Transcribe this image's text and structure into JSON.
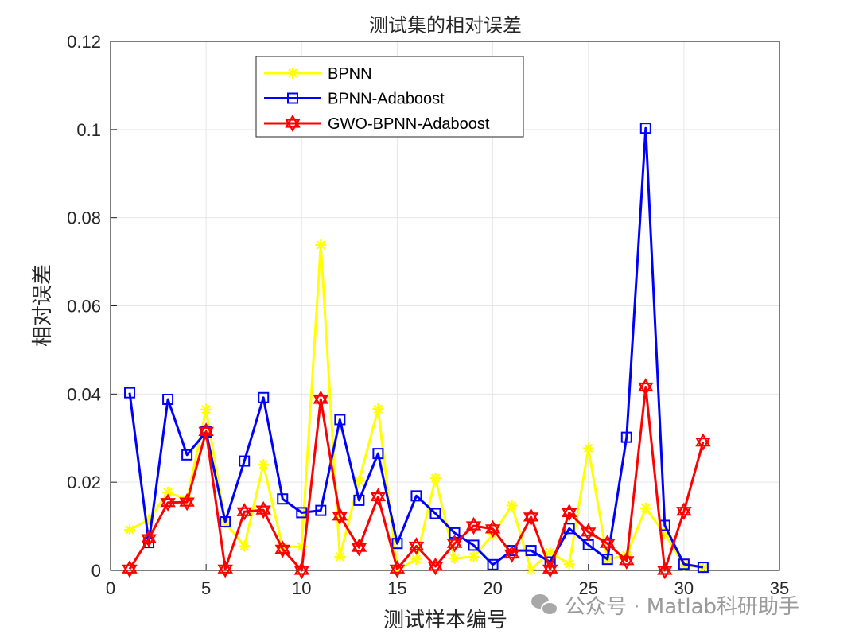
{
  "chart_data": {
    "type": "line",
    "title": "测试集的相对误差",
    "xlabel": "测试样本编号",
    "ylabel": "相对误差",
    "xlim": [
      0,
      35
    ],
    "ylim": [
      0,
      0.12
    ],
    "xticks": [
      0,
      5,
      10,
      15,
      20,
      25,
      30,
      35
    ],
    "xtick_labels": [
      "0",
      "5",
      "10",
      "15",
      "20",
      "25",
      "30",
      "35"
    ],
    "yticks": [
      0,
      0.02,
      0.04,
      0.06,
      0.08,
      0.1,
      0.12
    ],
    "ytick_labels": [
      "0",
      "0.02",
      "0.04",
      "0.06",
      "0.08",
      "0.1",
      "0.12"
    ],
    "grid": true,
    "legend_position": "upper-left-inside",
    "x": [
      1,
      2,
      3,
      4,
      5,
      6,
      7,
      8,
      9,
      10,
      11,
      12,
      13,
      14,
      15,
      16,
      17,
      18,
      19,
      20,
      21,
      22,
      23,
      24,
      25,
      26,
      27,
      28,
      29,
      30,
      31
    ],
    "series": [
      {
        "name": "BPNN",
        "color": "#FFFF00",
        "marker": "asterisk",
        "values": [
          0.0092,
          0.0115,
          0.0177,
          0.016,
          0.0365,
          0.0108,
          0.0055,
          0.024,
          0.0053,
          0.0054,
          0.0738,
          0.0031,
          0.0203,
          0.0366,
          0.0001,
          0.0025,
          0.0209,
          0.0027,
          0.0031,
          0.0081,
          0.0147,
          0.0002,
          0.0041,
          0.0014,
          0.0277,
          0.0025,
          0.0034,
          0.0141,
          0.0083,
          0.0012,
          0.0006
        ]
      },
      {
        "name": "BPNN-Adaboost",
        "color": "#0000FF",
        "marker": "square",
        "values": [
          0.0403,
          0.0063,
          0.0388,
          0.0262,
          0.0314,
          0.011,
          0.0248,
          0.0392,
          0.0162,
          0.0131,
          0.0136,
          0.0342,
          0.0159,
          0.0265,
          0.0061,
          0.0169,
          0.0129,
          0.0085,
          0.0057,
          0.0013,
          0.0045,
          0.0045,
          0.0019,
          0.0095,
          0.0058,
          0.0025,
          0.0302,
          0.1003,
          0.0102,
          0.0014,
          0.0007
        ]
      },
      {
        "name": "GWO-BPNN-Adaboost",
        "color": "#FF0000",
        "marker": "hexagram",
        "values": [
          0.0003,
          0.0072,
          0.0154,
          0.0155,
          0.0315,
          0.0003,
          0.0133,
          0.0137,
          0.0048,
          0.0,
          0.0388,
          0.0123,
          0.0052,
          0.0167,
          0.0003,
          0.0055,
          0.0009,
          0.0061,
          0.0101,
          0.0094,
          0.0037,
          0.0121,
          0.0003,
          0.0131,
          0.0087,
          0.0061,
          0.0022,
          0.0416,
          0.0,
          0.0134,
          0.0291
        ]
      }
    ]
  },
  "watermark": {
    "text": "公众号 · Matlab科研助手",
    "icon": "wechat-icon"
  }
}
